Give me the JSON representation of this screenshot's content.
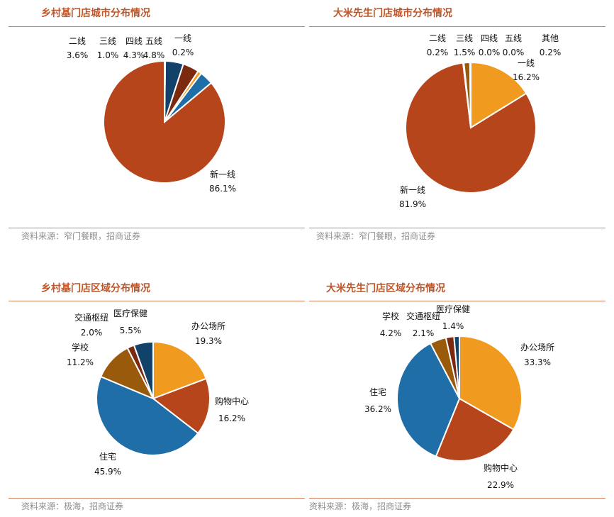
{
  "colors": {
    "title": "#c0562a",
    "rule": "#d4825f",
    "source": "#8e8e8e",
    "rust": "#b6451b",
    "blue": "#1f6ea8",
    "orange": "#f09b1f",
    "brown": "#9a5a0c",
    "darkred": "#7b2a10",
    "navy": "#12426a"
  },
  "chart_data": [
    {
      "type": "pie",
      "title": "乡村基门店城市分布情况",
      "source": "资料来源：窄门餐眼，招商证券",
      "labels": [
        "新一线",
        "二线",
        "三线",
        "四线",
        "五线",
        "一线"
      ],
      "values": [
        86.1,
        3.6,
        1.0,
        4.3,
        4.8,
        0.2
      ],
      "value_labels": [
        "86.1%",
        "3.6%",
        "1.0%",
        "4.3%",
        "4.8%",
        "0.2%"
      ],
      "colors": [
        "#b6451b",
        "#1f6ea8",
        "#f09b1f",
        "#7b2a10",
        "#12426a",
        "#9a5a0c"
      ]
    },
    {
      "type": "pie",
      "title": "大米先生门店城市分布情况",
      "source": "资料来源：窄门餐眼，招商证券",
      "labels": [
        "一线",
        "新一线",
        "二线",
        "三线",
        "四线",
        "五线",
        "其他"
      ],
      "values": [
        16.2,
        81.9,
        0.2,
        1.5,
        0.0,
        0.0,
        0.2
      ],
      "value_labels": [
        "16.2%",
        "81.9%",
        "0.2%",
        "1.5%",
        "0.0%",
        "0.0%",
        "0.2%"
      ],
      "colors": [
        "#f09b1f",
        "#b6451b",
        "#1f6ea8",
        "#9a5a0c",
        "#7b2a10",
        "#12426a",
        "#888888"
      ]
    },
    {
      "type": "pie",
      "title": "乡村基门店区域分布情况",
      "source": "资料来源：极海，招商证券",
      "labels": [
        "办公场所",
        "购物中心",
        "住宅",
        "学校",
        "交通枢纽",
        "医疗保健"
      ],
      "values": [
        19.3,
        16.2,
        45.9,
        11.2,
        2.0,
        5.5
      ],
      "value_labels": [
        "19.3%",
        "16.2%",
        "45.9%",
        "11.2%",
        "2.0%",
        "5.5%"
      ],
      "colors": [
        "#f09b1f",
        "#b6451b",
        "#1f6ea8",
        "#9a5a0c",
        "#7b2a10",
        "#12426a"
      ]
    },
    {
      "type": "pie",
      "title": "大米先生门店区域分布情况",
      "source": "资料来源：极海，招商证券",
      "labels": [
        "办公场所",
        "购物中心",
        "住宅",
        "学校",
        "交通枢纽",
        "医疗保健"
      ],
      "values": [
        33.3,
        22.9,
        36.2,
        4.2,
        2.1,
        1.4
      ],
      "value_labels": [
        "33.3%",
        "22.9%",
        "36.2%",
        "4.2%",
        "2.1%",
        "1.4%"
      ],
      "colors": [
        "#f09b1f",
        "#b6451b",
        "#1f6ea8",
        "#9a5a0c",
        "#7b2a10",
        "#12426a"
      ]
    }
  ]
}
